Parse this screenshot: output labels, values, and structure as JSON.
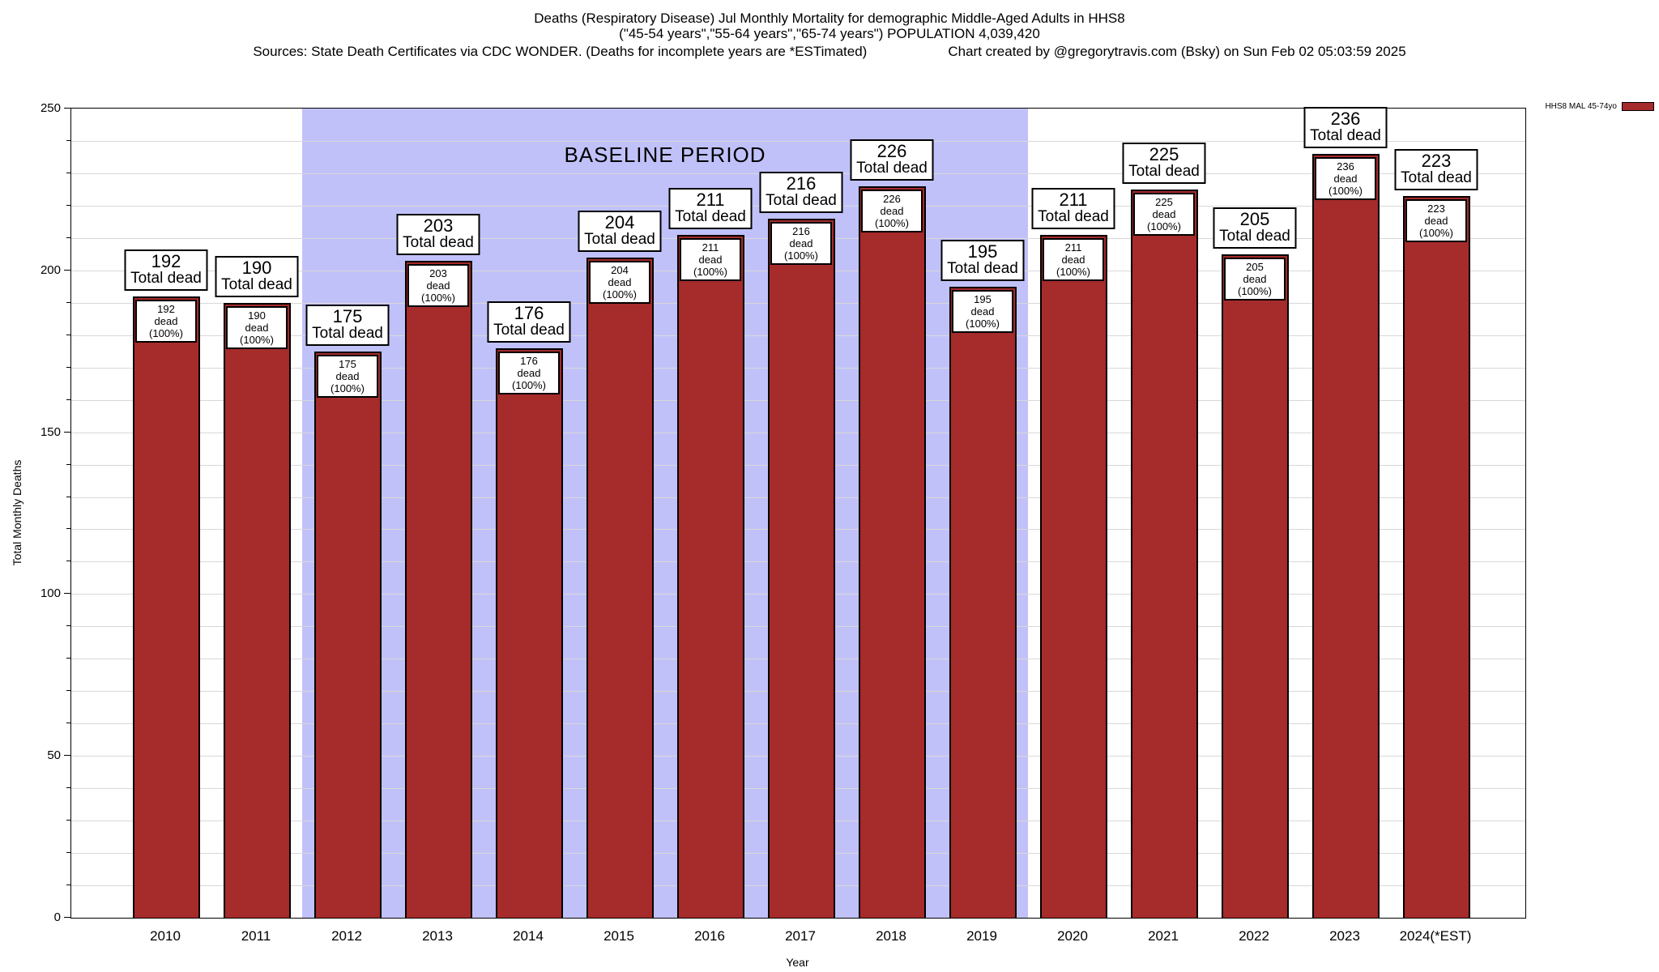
{
  "title": {
    "line1": "Deaths (Respiratory Disease) Jul Monthly Mortality for demographic Middle-Aged Adults in HHS8",
    "line2": "(\"45-54 years\",\"55-64 years\",\"65-74 years\") POPULATION 4,039,420",
    "line3_left": "Sources: State Death Certificates via CDC WONDER. (Deaths for incomplete years are *ESTimated)",
    "line3_right": "Chart created by @gregorytravis.com (Bsky) on Sun Feb 02 05:03:59 2025"
  },
  "legend": {
    "label": "HHS8 MAL 45-74yo",
    "swatch_color": "#A62B2B"
  },
  "chart_data": {
    "type": "bar",
    "title": "Deaths (Respiratory Disease) Jul Monthly Mortality for demographic Middle-Aged Adults in HHS8",
    "categories": [
      "2010",
      "2011",
      "2012",
      "2013",
      "2014",
      "2015",
      "2016",
      "2017",
      "2018",
      "2019",
      "2020",
      "2021",
      "2022",
      "2023",
      "2024(*EST)"
    ],
    "values": [
      192,
      190,
      175,
      203,
      176,
      204,
      211,
      216,
      226,
      195,
      211,
      225,
      205,
      236,
      223
    ],
    "bar_top_label_suffix": "Total dead",
    "bar_inner_label_suffix": "dead (100%)",
    "xlabel": "Year",
    "ylabel": "Total Monthly Deaths",
    "ylim": [
      0,
      250
    ],
    "ytick_major_interval": 50,
    "ytick_minor_interval": 10,
    "grid": true,
    "legend_position": "top-right",
    "bar_color": "#A62B2B",
    "bar_border_color": "#000000",
    "baseline_region": {
      "label": "BASELINE PERIOD",
      "from_category": "2012",
      "to_category": "2019",
      "color": "#C1C1FA"
    }
  }
}
